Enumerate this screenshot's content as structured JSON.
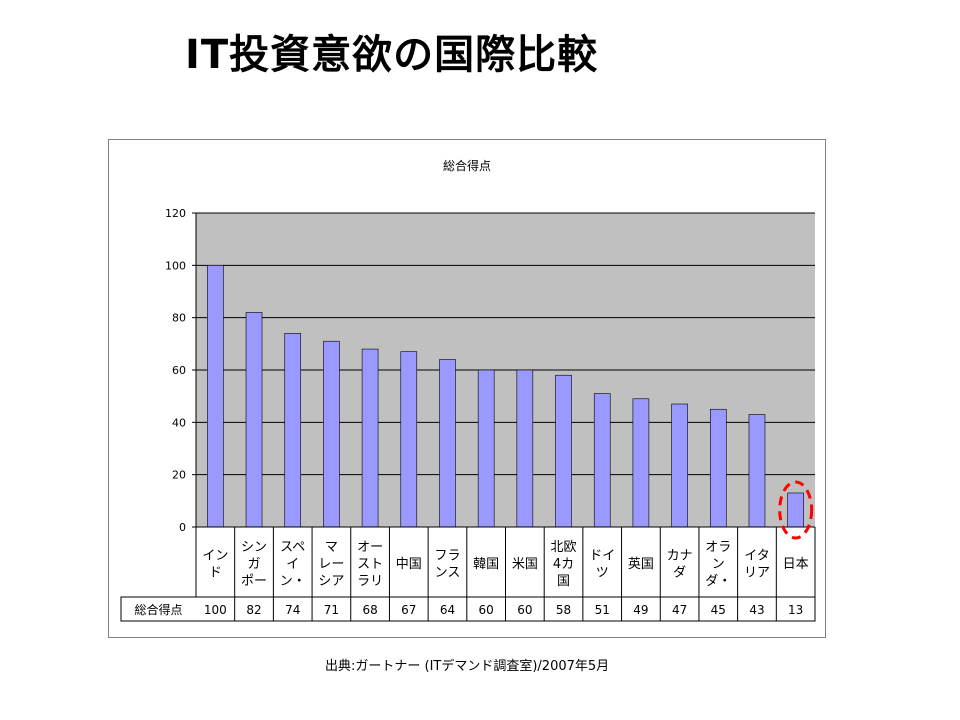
{
  "slide": {
    "title": "IT投資意欲の国際比較",
    "source": "出典:ガートナー (ITデマンド調査室)/2007年5月"
  },
  "chart_data": {
    "type": "bar",
    "title": "総合得点",
    "categories": [
      [
        "イン",
        "ド"
      ],
      [
        "シン",
        "ガ",
        "ポー"
      ],
      [
        "スペ",
        "イ",
        "ン・"
      ],
      [
        "マ",
        "レー",
        "シア"
      ],
      [
        "オー",
        "スト",
        "ラリ"
      ],
      [
        "中国"
      ],
      [
        "フラ",
        "ンス"
      ],
      [
        "韓国"
      ],
      [
        "米国"
      ],
      [
        "北欧",
        "4カ",
        "国"
      ],
      [
        "ドイ",
        "ツ"
      ],
      [
        "英国"
      ],
      [
        "カナ",
        "ダ"
      ],
      [
        "オラ",
        "ン",
        "ダ・"
      ],
      [
        "イタ",
        "リア"
      ],
      [
        "日本"
      ]
    ],
    "series": [
      {
        "name": "総合得点",
        "values": [
          100,
          82,
          74,
          71,
          68,
          67,
          64,
          60,
          60,
          58,
          51,
          49,
          47,
          45,
          43,
          13
        ]
      }
    ],
    "table_values": [
      "100",
      "82",
      "74",
      "71",
      "68",
      "67",
      "64",
      "60",
      "60",
      "58",
      "51",
      "49",
      "47",
      "45",
      "43",
      "13"
    ],
    "yticks": [
      "0",
      "20",
      "40",
      "60",
      "80",
      "100",
      "120"
    ],
    "ylim": [
      0,
      120
    ],
    "grid": true,
    "legend": "none",
    "highlight_category": "日本",
    "colors": {
      "bar": "#9999ff",
      "plot_background": "#c0c0c0",
      "highlight": "#ff0000"
    }
  }
}
